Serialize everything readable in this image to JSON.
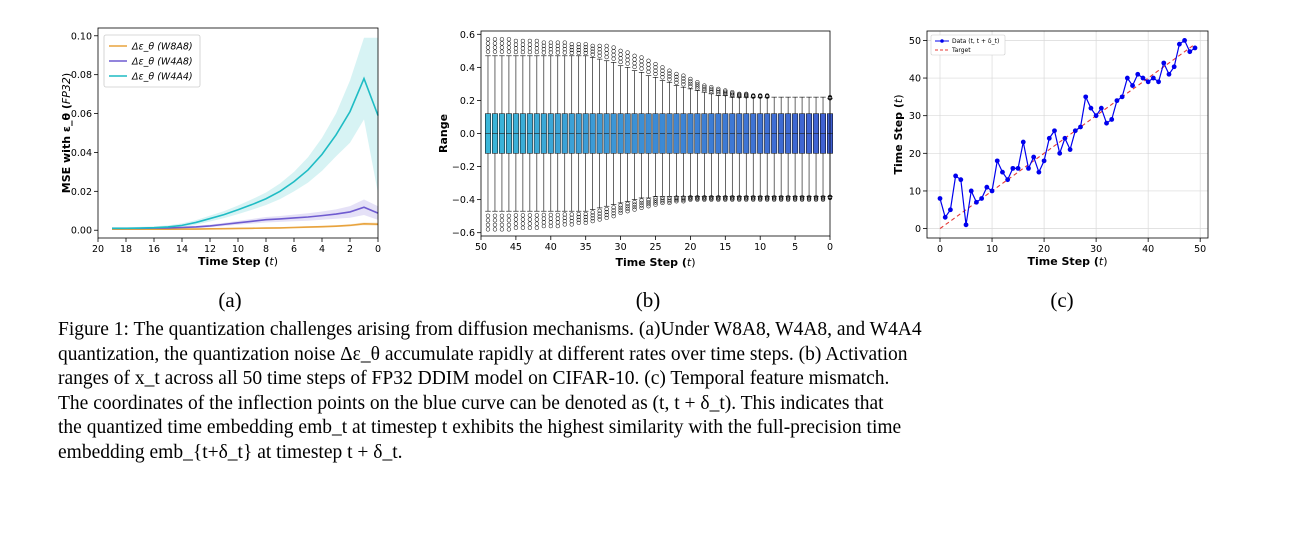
{
  "figure": {
    "subcaptions": [
      "(a)",
      "(b)",
      "(c)"
    ],
    "caption_lines": [
      "Figure 1: The quantization challenges arising from diffusion mechanisms. (a)Under W8A8, W4A8, and W4A4",
      "quantization, the quantization noise Δε_θ accumulate rapidly at different rates over time steps. (b) Activation",
      "ranges of x_t across all 50 time steps of FP32 DDIM model on CIFAR-10. (c) Temporal feature mismatch.",
      "The coordinates of the inflection points on the blue curve can be denoted as (t, t + δ_t). This indicates that",
      "the quantized time embedding emb_t at timestep t exhibits the highest similarity with the full-precision time",
      "embedding emb_{t+δ_t} at timestep t + δ_t."
    ]
  },
  "chart_data": [
    {
      "type": "line",
      "xlabel": "Time Step (t)",
      "ylabel": "MSE with ε_θ (FP32)",
      "xlim": [
        20,
        0
      ],
      "ylim": [
        -0.004,
        0.104
      ],
      "xticks": [
        20,
        18,
        16,
        14,
        12,
        10,
        8,
        6,
        4,
        2,
        0
      ],
      "yticks": [
        0.0,
        0.02,
        0.04,
        0.06,
        0.08,
        0.1
      ],
      "ytick_labels": [
        "0.00",
        "0.02",
        "0.04",
        "0.06",
        "0.08",
        "0.10"
      ],
      "legend_position": "top-left",
      "x": [
        19,
        18,
        17,
        16,
        15,
        14,
        13,
        12,
        11,
        10,
        9,
        8,
        7,
        6,
        5,
        4,
        3,
        2,
        1,
        0
      ],
      "series": [
        {
          "name": "Δε_θ (W8A8)",
          "color": "#e8a33d",
          "values": [
            0.0005,
            0.0005,
            0.0005,
            0.0005,
            0.0005,
            0.0006,
            0.0006,
            0.0007,
            0.0008,
            0.0009,
            0.001,
            0.0011,
            0.0012,
            0.0014,
            0.0016,
            0.0018,
            0.0021,
            0.0025,
            0.0033,
            0.0031
          ],
          "band": [
            0.0004,
            0.0004,
            0.0004,
            0.0004,
            0.0004,
            0.0004,
            0.0004,
            0.0004,
            0.0004,
            0.0004,
            0.0004,
            0.0004,
            0.0004,
            0.0005,
            0.0005,
            0.0005,
            0.0005,
            0.0006,
            0.0008,
            0.0009
          ]
        },
        {
          "name": "Δε_θ (W4A8)",
          "color": "#6f5bd0",
          "values": [
            0.001,
            0.001,
            0.001,
            0.0011,
            0.0012,
            0.0014,
            0.0017,
            0.0022,
            0.003,
            0.0038,
            0.0046,
            0.0054,
            0.0058,
            0.0063,
            0.0068,
            0.0075,
            0.0083,
            0.0094,
            0.0118,
            0.0088
          ],
          "band": [
            0.0005,
            0.0005,
            0.0005,
            0.0005,
            0.0005,
            0.0006,
            0.0006,
            0.0007,
            0.0008,
            0.001,
            0.0012,
            0.0014,
            0.0015,
            0.0017,
            0.0019,
            0.0021,
            0.0024,
            0.003,
            0.004,
            0.0035
          ]
        },
        {
          "name": "Δε_θ (W4A4)",
          "color": "#1fbcc4",
          "values": [
            0.001,
            0.001,
            0.0011,
            0.0013,
            0.0017,
            0.0025,
            0.004,
            0.006,
            0.008,
            0.0105,
            0.0132,
            0.0162,
            0.02,
            0.025,
            0.031,
            0.039,
            0.049,
            0.061,
            0.078,
            0.059
          ],
          "band": [
            0.0005,
            0.0005,
            0.0006,
            0.0007,
            0.0008,
            0.001,
            0.0012,
            0.0015,
            0.0018,
            0.0022,
            0.0027,
            0.0032,
            0.004,
            0.005,
            0.0065,
            0.0085,
            0.011,
            0.016,
            0.021,
            0.04
          ]
        }
      ]
    },
    {
      "type": "box",
      "xlabel": "Time Step (t)",
      "ylabel": "Range",
      "xlim": [
        50,
        0
      ],
      "ylim": [
        -0.62,
        0.62
      ],
      "xticks": [
        50,
        45,
        40,
        35,
        30,
        25,
        20,
        15,
        10,
        5,
        0
      ],
      "yticks": [
        -0.6,
        -0.4,
        -0.2,
        0.0,
        0.2,
        0.4,
        0.6
      ],
      "ytick_labels": [
        "−0.6",
        "−0.4",
        "−0.2",
        "0.0",
        "0.2",
        "0.4",
        "0.6"
      ],
      "box_color_start": "#3ab6d8",
      "box_color_end": "#3f5fd2",
      "t": [
        49,
        48,
        47,
        46,
        45,
        44,
        43,
        42,
        41,
        40,
        39,
        38,
        37,
        36,
        35,
        34,
        33,
        32,
        31,
        30,
        29,
        28,
        27,
        26,
        25,
        24,
        23,
        22,
        21,
        20,
        19,
        18,
        17,
        16,
        15,
        14,
        13,
        12,
        11,
        10,
        9,
        8,
        7,
        6,
        5,
        4,
        3,
        2,
        1,
        0
      ],
      "q1": [
        -0.12,
        -0.12,
        -0.12,
        -0.12,
        -0.12,
        -0.12,
        -0.12,
        -0.12,
        -0.12,
        -0.12,
        -0.12,
        -0.12,
        -0.12,
        -0.12,
        -0.12,
        -0.12,
        -0.12,
        -0.12,
        -0.12,
        -0.12,
        -0.12,
        -0.12,
        -0.12,
        -0.12,
        -0.12,
        -0.12,
        -0.12,
        -0.12,
        -0.12,
        -0.12,
        -0.12,
        -0.12,
        -0.12,
        -0.12,
        -0.12,
        -0.12,
        -0.12,
        -0.12,
        -0.12,
        -0.12,
        -0.12,
        -0.12,
        -0.12,
        -0.12,
        -0.12,
        -0.12,
        -0.12,
        -0.12,
        -0.12,
        -0.12
      ],
      "q3": [
        0.12,
        0.12,
        0.12,
        0.12,
        0.12,
        0.12,
        0.12,
        0.12,
        0.12,
        0.12,
        0.12,
        0.12,
        0.12,
        0.12,
        0.12,
        0.12,
        0.12,
        0.12,
        0.12,
        0.12,
        0.12,
        0.12,
        0.12,
        0.12,
        0.12,
        0.12,
        0.12,
        0.12,
        0.12,
        0.12,
        0.12,
        0.12,
        0.12,
        0.12,
        0.12,
        0.12,
        0.12,
        0.12,
        0.12,
        0.12,
        0.12,
        0.12,
        0.12,
        0.12,
        0.12,
        0.12,
        0.12,
        0.12,
        0.12,
        0.12
      ],
      "median": [
        0,
        0,
        0,
        0,
        0,
        0,
        0,
        0,
        0,
        0,
        0,
        0,
        0,
        0,
        0,
        0,
        0,
        0,
        0,
        0,
        0,
        0,
        0,
        0,
        0,
        0,
        0,
        0,
        0,
        0,
        0,
        0,
        0,
        0,
        0,
        0,
        0,
        0,
        0,
        0,
        0,
        0,
        0,
        0,
        0,
        0,
        0,
        0,
        0,
        0
      ],
      "whisker_high": [
        0.47,
        0.47,
        0.47,
        0.47,
        0.47,
        0.47,
        0.47,
        0.47,
        0.47,
        0.47,
        0.47,
        0.47,
        0.47,
        0.47,
        0.47,
        0.46,
        0.45,
        0.44,
        0.43,
        0.41,
        0.4,
        0.38,
        0.37,
        0.35,
        0.34,
        0.32,
        0.31,
        0.29,
        0.28,
        0.27,
        0.26,
        0.25,
        0.24,
        0.23,
        0.23,
        0.22,
        0.22,
        0.22,
        0.22,
        0.22,
        0.22,
        0.22,
        0.22,
        0.22,
        0.22,
        0.22,
        0.22,
        0.22,
        0.22,
        0.21
      ],
      "whisker_low": [
        -0.47,
        -0.47,
        -0.47,
        -0.47,
        -0.47,
        -0.47,
        -0.47,
        -0.47,
        -0.47,
        -0.47,
        -0.47,
        -0.47,
        -0.47,
        -0.47,
        -0.47,
        -0.46,
        -0.45,
        -0.44,
        -0.43,
        -0.42,
        -0.41,
        -0.4,
        -0.39,
        -0.39,
        -0.38,
        -0.38,
        -0.38,
        -0.38,
        -0.38,
        -0.38,
        -0.38,
        -0.38,
        -0.38,
        -0.38,
        -0.38,
        -0.38,
        -0.38,
        -0.38,
        -0.38,
        -0.38,
        -0.38,
        -0.38,
        -0.38,
        -0.38,
        -0.38,
        -0.38,
        -0.38,
        -0.38,
        -0.38,
        -0.38
      ],
      "outlier_max": [
        0.57,
        0.57,
        0.57,
        0.57,
        0.56,
        0.56,
        0.56,
        0.56,
        0.55,
        0.55,
        0.55,
        0.55,
        0.54,
        0.54,
        0.54,
        0.53,
        0.53,
        0.53,
        0.52,
        0.5,
        0.49,
        0.47,
        0.46,
        0.44,
        0.42,
        0.4,
        0.38,
        0.36,
        0.35,
        0.33,
        0.31,
        0.29,
        0.28,
        0.27,
        0.26,
        0.25,
        0.24,
        0.24,
        0.23,
        0.23,
        0.23,
        0.22,
        0.22,
        0.22,
        0.22,
        0.22,
        0.22,
        0.22,
        0.22,
        0.22
      ],
      "outlier_min": [
        -0.58,
        -0.58,
        -0.58,
        -0.58,
        -0.57,
        -0.57,
        -0.57,
        -0.57,
        -0.56,
        -0.56,
        -0.56,
        -0.55,
        -0.55,
        -0.54,
        -0.54,
        -0.53,
        -0.52,
        -0.51,
        -0.5,
        -0.48,
        -0.47,
        -0.46,
        -0.45,
        -0.44,
        -0.43,
        -0.42,
        -0.42,
        -0.41,
        -0.41,
        -0.4,
        -0.4,
        -0.4,
        -0.4,
        -0.4,
        -0.4,
        -0.4,
        -0.4,
        -0.4,
        -0.4,
        -0.4,
        -0.4,
        -0.4,
        -0.4,
        -0.4,
        -0.4,
        -0.4,
        -0.4,
        -0.4,
        -0.4,
        -0.39
      ]
    },
    {
      "type": "line",
      "xlabel": "Time Step (t)",
      "ylabel": "Time Step (t)",
      "xlim": [
        -2.5,
        51.5
      ],
      "ylim": [
        -2.5,
        52.5
      ],
      "xticks": [
        0,
        10,
        20,
        30,
        40,
        50
      ],
      "yticks": [
        0,
        10,
        20,
        30,
        40,
        50
      ],
      "grid": true,
      "legend_position": "top-left",
      "series": [
        {
          "name": "Data (t, t + δ_t)",
          "color": "#0000ee",
          "marker": "circle",
          "x": [
            0,
            1,
            2,
            3,
            4,
            5,
            6,
            7,
            8,
            9,
            10,
            11,
            12,
            13,
            14,
            15,
            16,
            17,
            18,
            19,
            20,
            21,
            22,
            23,
            24,
            25,
            26,
            27,
            28,
            29,
            30,
            31,
            32,
            33,
            34,
            35,
            36,
            37,
            38,
            39,
            40,
            41,
            42,
            43,
            44,
            45,
            46,
            47,
            48,
            49
          ],
          "y": [
            8,
            3,
            5,
            14,
            13,
            1,
            10,
            7,
            8,
            11,
            10,
            18,
            15,
            13,
            16,
            16,
            23,
            16,
            19,
            15,
            18,
            24,
            26,
            20,
            24,
            21,
            26,
            27,
            35,
            32,
            30,
            32,
            28,
            29,
            34,
            35,
            40,
            38,
            41,
            40,
            39,
            40,
            39,
            44,
            41,
            43,
            49,
            50,
            47,
            48
          ]
        },
        {
          "name": "Target",
          "color": "#e53935",
          "style": "dashed",
          "x": [
            0,
            49
          ],
          "y": [
            0,
            49
          ]
        }
      ]
    }
  ]
}
